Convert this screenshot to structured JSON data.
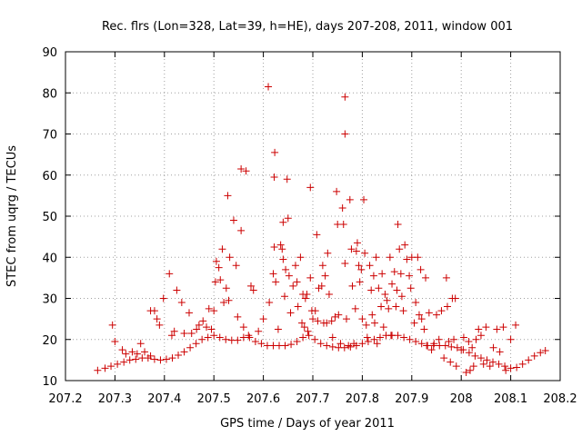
{
  "chart_data": {
    "type": "scatter",
    "title": "Rec. flrs (Lon=328, Lat=39, h=HE), days 207-208, 2011, window 001",
    "xlabel": "GPS time / Days of year 2011",
    "ylabel": "STEC from uqrg / TECUs",
    "xlim": [
      207.2,
      208.2
    ],
    "ylim": [
      10,
      90
    ],
    "xticks": [
      "207.2",
      "207.3",
      "207.4",
      "207.5",
      "207.6",
      "207.7",
      "207.8",
      "207.9",
      "208",
      "208.1",
      "208.2"
    ],
    "yticks": [
      "10",
      "20",
      "30",
      "40",
      "50",
      "60",
      "70",
      "80",
      "90"
    ],
    "grid": true,
    "marker": "+",
    "color": "#cc0000",
    "points": [
      [
        207.265,
        12.5
      ],
      [
        207.28,
        13
      ],
      [
        207.292,
        13.5
      ],
      [
        207.305,
        14
      ],
      [
        207.318,
        14.5
      ],
      [
        207.33,
        15
      ],
      [
        207.342,
        15.2
      ],
      [
        207.355,
        15.5
      ],
      [
        207.367,
        15.5
      ],
      [
        207.38,
        15.2
      ],
      [
        207.392,
        15
      ],
      [
        207.404,
        15.2
      ],
      [
        207.416,
        15.5
      ],
      [
        207.428,
        16.2
      ],
      [
        207.44,
        17
      ],
      [
        207.452,
        18
      ],
      [
        207.464,
        19
      ],
      [
        207.476,
        20
      ],
      [
        207.488,
        20.5
      ],
      [
        207.5,
        21
      ],
      [
        207.512,
        20.5
      ],
      [
        207.524,
        20
      ],
      [
        207.536,
        19.8
      ],
      [
        207.548,
        19.8
      ],
      [
        207.56,
        20.5
      ],
      [
        207.572,
        20.5
      ],
      [
        207.584,
        19.5
      ],
      [
        207.596,
        19
      ],
      [
        207.608,
        18.5
      ],
      [
        207.62,
        18.5
      ],
      [
        207.632,
        18.5
      ],
      [
        207.644,
        18.5
      ],
      [
        207.656,
        18.8
      ],
      [
        207.668,
        19.5
      ],
      [
        207.68,
        20.5
      ],
      [
        207.692,
        21
      ],
      [
        207.704,
        20
      ],
      [
        207.716,
        19
      ],
      [
        207.728,
        18.5
      ],
      [
        207.74,
        18.2
      ],
      [
        207.752,
        18
      ],
      [
        207.764,
        18
      ],
      [
        207.776,
        18.2
      ],
      [
        207.788,
        18.5
      ],
      [
        207.8,
        19
      ],
      [
        207.812,
        19.5
      ],
      [
        207.824,
        20
      ],
      [
        207.836,
        20.5
      ],
      [
        207.848,
        21
      ],
      [
        207.86,
        21
      ],
      [
        207.872,
        21
      ],
      [
        207.884,
        20.5
      ],
      [
        207.896,
        20
      ],
      [
        207.908,
        19.5
      ],
      [
        207.92,
        19
      ],
      [
        207.932,
        18.5
      ],
      [
        207.944,
        18.5
      ],
      [
        207.956,
        18.5
      ],
      [
        207.968,
        18.5
      ],
      [
        207.98,
        18.2
      ],
      [
        207.992,
        18
      ],
      [
        208.004,
        17.5
      ],
      [
        208.016,
        16.8
      ],
      [
        208.028,
        16
      ],
      [
        208.04,
        15.5
      ],
      [
        208.052,
        15
      ],
      [
        208.064,
        14.5
      ],
      [
        208.076,
        14
      ],
      [
        208.088,
        13.5
      ],
      [
        208.1,
        13
      ],
      [
        208.112,
        13.2
      ],
      [
        208.124,
        14
      ],
      [
        208.136,
        15
      ],
      [
        208.148,
        16
      ],
      [
        208.16,
        16.8
      ],
      [
        208.17,
        17.3
      ],
      [
        207.295,
        23.5
      ],
      [
        207.3,
        19.5
      ],
      [
        207.315,
        17.5
      ],
      [
        207.322,
        16.5
      ],
      [
        207.335,
        17
      ],
      [
        207.345,
        16.5
      ],
      [
        207.352,
        19
      ],
      [
        207.36,
        17
      ],
      [
        207.372,
        16
      ],
      [
        207.372,
        27
      ],
      [
        207.38,
        27
      ],
      [
        207.385,
        25
      ],
      [
        207.39,
        23.5
      ],
      [
        207.398,
        30
      ],
      [
        207.41,
        36
      ],
      [
        207.415,
        21
      ],
      [
        207.42,
        22
      ],
      [
        207.425,
        32
      ],
      [
        207.435,
        29
      ],
      [
        207.44,
        21.5
      ],
      [
        207.45,
        26.5
      ],
      [
        207.455,
        21.5
      ],
      [
        207.465,
        22.5
      ],
      [
        207.47,
        23.5
      ],
      [
        207.478,
        24.5
      ],
      [
        207.485,
        23
      ],
      [
        207.49,
        27.5
      ],
      [
        207.495,
        22.5
      ],
      [
        207.5,
        27
      ],
      [
        207.503,
        34
      ],
      [
        207.505,
        39
      ],
      [
        207.51,
        37.5
      ],
      [
        207.513,
        34.5
      ],
      [
        207.517,
        42
      ],
      [
        207.52,
        29
      ],
      [
        207.525,
        32.5
      ],
      [
        207.528,
        55
      ],
      [
        207.53,
        29.5
      ],
      [
        207.532,
        40
      ],
      [
        207.54,
        49
      ],
      [
        207.545,
        38
      ],
      [
        207.548,
        25.5
      ],
      [
        207.555,
        46.5
      ],
      [
        207.555,
        61.5
      ],
      [
        207.56,
        23
      ],
      [
        207.565,
        61
      ],
      [
        207.57,
        21
      ],
      [
        207.575,
        33
      ],
      [
        207.58,
        32
      ],
      [
        207.59,
        22
      ],
      [
        207.6,
        25
      ],
      [
        207.61,
        81.5
      ],
      [
        207.612,
        29
      ],
      [
        207.62,
        36
      ],
      [
        207.622,
        42.5
      ],
      [
        207.622,
        59.5
      ],
      [
        207.623,
        65.5
      ],
      [
        207.625,
        34
      ],
      [
        207.63,
        22.5
      ],
      [
        207.635,
        43
      ],
      [
        207.638,
        42
      ],
      [
        207.64,
        48.5
      ],
      [
        207.64,
        39.5
      ],
      [
        207.643,
        30.5
      ],
      [
        207.645,
        37
      ],
      [
        207.648,
        59
      ],
      [
        207.65,
        49.5
      ],
      [
        207.652,
        35.5
      ],
      [
        207.655,
        26.5
      ],
      [
        207.66,
        33
      ],
      [
        207.665,
        38
      ],
      [
        207.668,
        34
      ],
      [
        207.67,
        28
      ],
      [
        207.675,
        40
      ],
      [
        207.678,
        24
      ],
      [
        207.68,
        31
      ],
      [
        207.683,
        23
      ],
      [
        207.685,
        30
      ],
      [
        207.688,
        31
      ],
      [
        207.69,
        22
      ],
      [
        207.695,
        57
      ],
      [
        207.695,
        35
      ],
      [
        207.698,
        27
      ],
      [
        207.7,
        25
      ],
      [
        207.705,
        27
      ],
      [
        207.708,
        45.5
      ],
      [
        207.71,
        24.5
      ],
      [
        207.712,
        32.5
      ],
      [
        207.718,
        33
      ],
      [
        207.72,
        38
      ],
      [
        207.722,
        24
      ],
      [
        207.725,
        35.5
      ],
      [
        207.728,
        24
      ],
      [
        207.73,
        41
      ],
      [
        207.733,
        31
      ],
      [
        207.738,
        24.5
      ],
      [
        207.74,
        20.5
      ],
      [
        207.745,
        25.5
      ],
      [
        207.748,
        56
      ],
      [
        207.75,
        48
      ],
      [
        207.752,
        26
      ],
      [
        207.756,
        19
      ],
      [
        207.76,
        52
      ],
      [
        207.762,
        48
      ],
      [
        207.765,
        79
      ],
      [
        207.765,
        70
      ],
      [
        207.765,
        38.5
      ],
      [
        207.768,
        25
      ],
      [
        207.772,
        18.5
      ],
      [
        207.775,
        54
      ],
      [
        207.778,
        42
      ],
      [
        207.78,
        33
      ],
      [
        207.783,
        19
      ],
      [
        207.786,
        27.5
      ],
      [
        207.788,
        41.5
      ],
      [
        207.79,
        43.5
      ],
      [
        207.793,
        38
      ],
      [
        207.795,
        34
      ],
      [
        207.798,
        37
      ],
      [
        207.8,
        25
      ],
      [
        207.803,
        54
      ],
      [
        207.805,
        41
      ],
      [
        207.808,
        23.5
      ],
      [
        207.81,
        20.5
      ],
      [
        207.815,
        38
      ],
      [
        207.818,
        32
      ],
      [
        207.82,
        26
      ],
      [
        207.823,
        35.5
      ],
      [
        207.825,
        24
      ],
      [
        207.828,
        40
      ],
      [
        207.83,
        19
      ],
      [
        207.833,
        32.5
      ],
      [
        207.838,
        28
      ],
      [
        207.84,
        36
      ],
      [
        207.843,
        23
      ],
      [
        207.846,
        31
      ],
      [
        207.85,
        29.5
      ],
      [
        207.853,
        27.5
      ],
      [
        207.856,
        40
      ],
      [
        207.858,
        21
      ],
      [
        207.86,
        33.5
      ],
      [
        207.865,
        36.5
      ],
      [
        207.868,
        28
      ],
      [
        207.87,
        32
      ],
      [
        207.872,
        48
      ],
      [
        207.875,
        42
      ],
      [
        207.878,
        36
      ],
      [
        207.88,
        30.5
      ],
      [
        207.883,
        27
      ],
      [
        207.886,
        43
      ],
      [
        207.89,
        39.5
      ],
      [
        207.895,
        35.5
      ],
      [
        207.898,
        32.5
      ],
      [
        207.9,
        40
      ],
      [
        207.905,
        24
      ],
      [
        207.908,
        29
      ],
      [
        207.912,
        40
      ],
      [
        207.915,
        26
      ],
      [
        207.918,
        37
      ],
      [
        207.92,
        25
      ],
      [
        207.925,
        22.5
      ],
      [
        207.928,
        35
      ],
      [
        207.93,
        18.5
      ],
      [
        207.935,
        26.5
      ],
      [
        207.94,
        17.5
      ],
      [
        207.945,
        19
      ],
      [
        207.95,
        26
      ],
      [
        207.955,
        20
      ],
      [
        207.96,
        27
      ],
      [
        207.965,
        15.5
      ],
      [
        207.97,
        35
      ],
      [
        207.972,
        28
      ],
      [
        207.975,
        19.5
      ],
      [
        207.978,
        14.5
      ],
      [
        207.982,
        30
      ],
      [
        207.985,
        20
      ],
      [
        207.988,
        30
      ],
      [
        207.99,
        13.5
      ],
      [
        208.0,
        17.5
      ],
      [
        208.005,
        20.5
      ],
      [
        208.01,
        12
      ],
      [
        208.015,
        19.5
      ],
      [
        208.018,
        12.5
      ],
      [
        208.022,
        18
      ],
      [
        208.025,
        13.5
      ],
      [
        208.03,
        20
      ],
      [
        208.035,
        22.5
      ],
      [
        208.04,
        21
      ],
      [
        208.045,
        14
      ],
      [
        208.05,
        23
      ],
      [
        208.058,
        13.5
      ],
      [
        208.065,
        18
      ],
      [
        208.072,
        22.5
      ],
      [
        208.078,
        17
      ],
      [
        208.085,
        23
      ],
      [
        208.09,
        12.5
      ],
      [
        208.1,
        20
      ],
      [
        208.11,
        23.5
      ]
    ]
  }
}
